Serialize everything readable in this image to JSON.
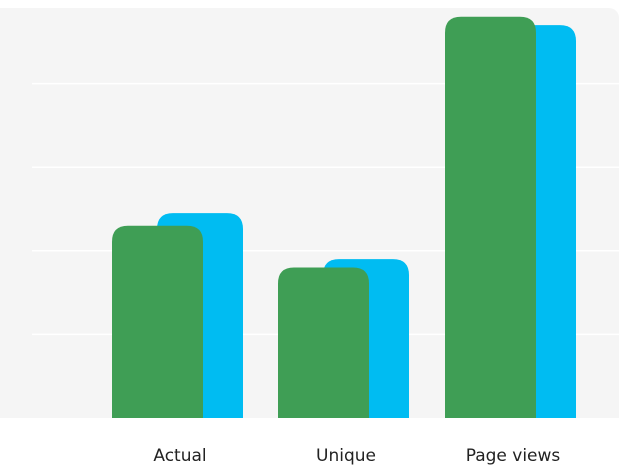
{
  "chart_data": {
    "type": "bar",
    "categories": [
      "Actual",
      "Unique",
      "Page views"
    ],
    "series": [
      {
        "values": [
          2.3,
          1.8,
          4.8
        ],
        "color": "#3f9e55"
      },
      {
        "values": [
          2.45,
          1.9,
          4.7
        ],
        "color": "#00bcf2"
      }
    ],
    "ylim": [
      0,
      5
    ],
    "grid": true,
    "legend": "none",
    "title": "",
    "xlabel": "",
    "ylabel": ""
  }
}
